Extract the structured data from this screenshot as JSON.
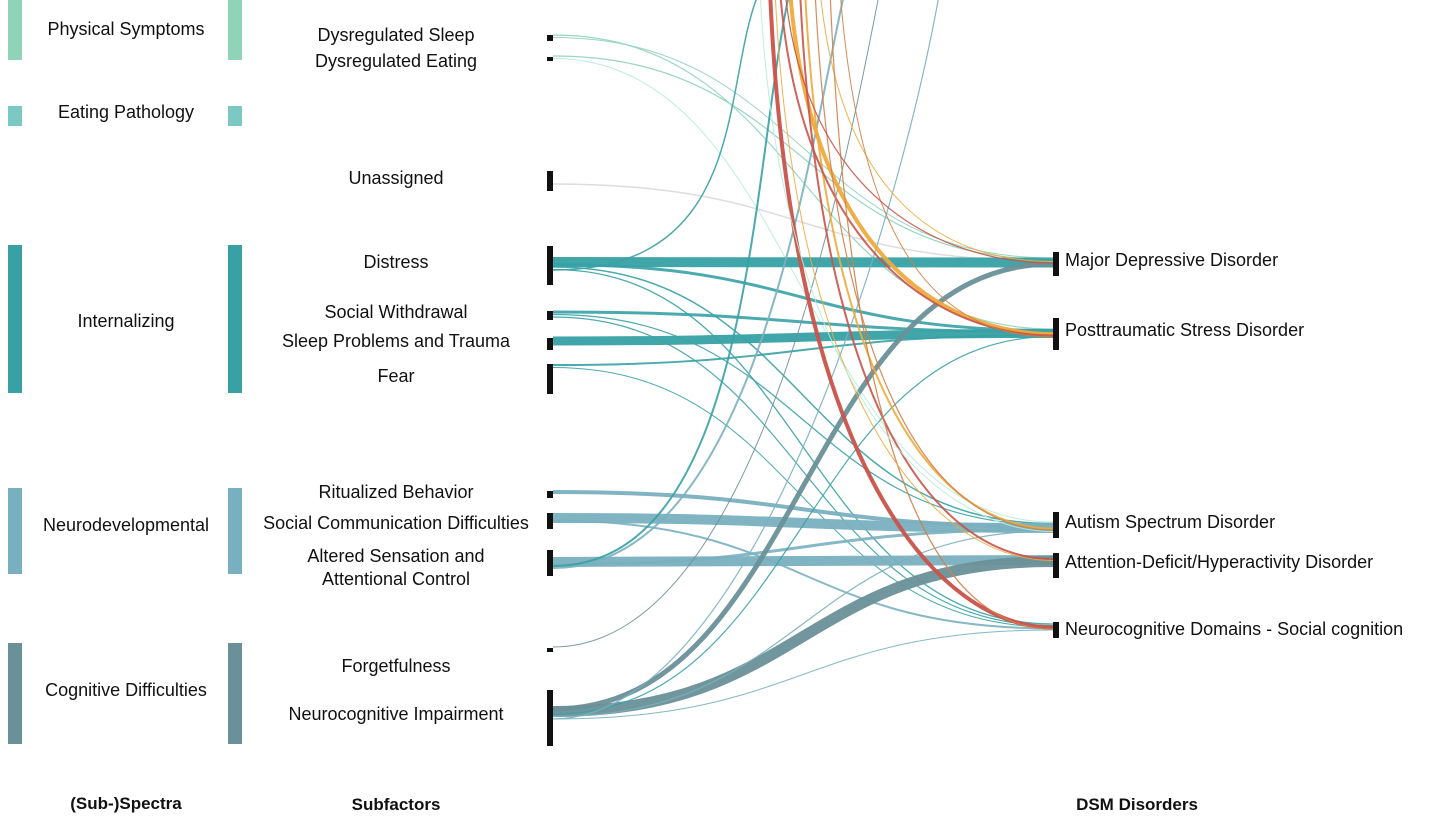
{
  "column_headers": {
    "spectra": "(Sub-)Spectra",
    "subfactors": "Subfactors",
    "dsm": "DSM Disorders"
  },
  "colors": {
    "physical": "#8fd3b9",
    "eating": "#7cc8c3",
    "internalizing": "#37a1a5",
    "neurodevelopmental": "#79b0bf",
    "cognitive": "#6a9098",
    "unassigned": "#d9d9d9",
    "orange": "#eeaa3c",
    "red": "#c9534a",
    "brown": "#d27f48",
    "mint": "#b5ecd7",
    "node": "#111111"
  },
  "spectra": [
    {
      "key": "physical",
      "label": "Physical Symptoms"
    },
    {
      "key": "eating",
      "label": "Eating Pathology"
    },
    {
      "key": "internalizing",
      "label": "Internalizing"
    },
    {
      "key": "neurodevelopmental",
      "label": "Neurodevelopmental"
    },
    {
      "key": "cognitive",
      "label": "Cognitive Difficulties"
    }
  ],
  "subfactors": [
    {
      "key": "sleep",
      "label": "Dysregulated Sleep"
    },
    {
      "key": "eating",
      "label": "Dysregulated Eating"
    },
    {
      "key": "unassigned",
      "label": "Unassigned"
    },
    {
      "key": "distress",
      "label": "Distress"
    },
    {
      "key": "withdrawal",
      "label": "Social Withdrawal"
    },
    {
      "key": "sleepTrauma",
      "label": "Sleep Problems and Trauma"
    },
    {
      "key": "fear",
      "label": "Fear"
    },
    {
      "key": "ritual",
      "label": "Ritualized Behavior"
    },
    {
      "key": "socialComm",
      "label": "Social Communication Difficulties"
    },
    {
      "key": "altered",
      "label": "Altered Sensation and",
      "label2": "Attentional Control"
    },
    {
      "key": "forget",
      "label": "Forgetfulness"
    },
    {
      "key": "neurocog",
      "label": "Neurocognitive Impairment"
    }
  ],
  "disorders": [
    {
      "key": "mdd",
      "label": "Major Depressive Disorder"
    },
    {
      "key": "ptsd",
      "label": "Posttraumatic Stress Disorder"
    },
    {
      "key": "asd",
      "label": "Autism Spectrum Disorder"
    },
    {
      "key": "adhd",
      "label": "Attention-Deficit/Hyperactivity Disorder"
    },
    {
      "key": "ncd",
      "label": "Neurocognitive Domains - Social cognition"
    }
  ],
  "flows": [
    {
      "from": "sleep",
      "to": "ptsd",
      "w": 1.2,
      "color": "physical"
    },
    {
      "from": "sleep",
      "to": "mdd",
      "w": 1,
      "color": "physical"
    },
    {
      "from": "eating",
      "to": "mdd",
      "w": 1.2,
      "color": "physical"
    },
    {
      "from": "eating",
      "to": "asd",
      "w": 1,
      "color": "mint"
    },
    {
      "from": "unassigned",
      "to": "mdd",
      "w": 1.5,
      "color": "unassigned"
    },
    {
      "from": "distress",
      "to": "mdd",
      "w": 10,
      "color": "internalizing"
    },
    {
      "from": "distress",
      "to": "ptsd",
      "w": 3,
      "color": "internalizing"
    },
    {
      "from": "distress",
      "to": "asd",
      "w": 1.5,
      "color": "internalizing"
    },
    {
      "from": "distress",
      "to": "ncd",
      "w": 1.3,
      "color": "internalizing"
    },
    {
      "from": "distress",
      "to": "top1",
      "w": 1.5,
      "color": "internalizing"
    },
    {
      "from": "withdrawal",
      "to": "ptsd",
      "w": 3,
      "color": "internalizing"
    },
    {
      "from": "withdrawal",
      "to": "asd",
      "w": 1.2,
      "color": "internalizing"
    },
    {
      "from": "withdrawal",
      "to": "ncd",
      "w": 1.2,
      "color": "internalizing"
    },
    {
      "from": "sleepTrauma",
      "to": "ptsd",
      "w": 9,
      "color": "internalizing"
    },
    {
      "from": "fear",
      "to": "ptsd",
      "w": 2,
      "color": "internalizing"
    },
    {
      "from": "fear",
      "to": "ncd",
      "w": 1,
      "color": "internalizing"
    },
    {
      "from": "ritual",
      "to": "asd",
      "w": 4,
      "color": "neurodevelopmental"
    },
    {
      "from": "socialComm",
      "to": "asd",
      "w": 10,
      "color": "neurodevelopmental"
    },
    {
      "from": "socialComm",
      "to": "ncd",
      "w": 2,
      "color": "neurodevelopmental"
    },
    {
      "from": "altered",
      "to": "adhd",
      "w": 10,
      "color": "neurodevelopmental"
    },
    {
      "from": "altered",
      "to": "asd",
      "w": 3,
      "color": "neurodevelopmental"
    },
    {
      "from": "altered",
      "to": "top2",
      "w": 2,
      "color": "internalizing"
    },
    {
      "from": "altered",
      "to": "top3",
      "w": 2,
      "color": "neurodevelopmental"
    },
    {
      "from": "forget",
      "to": "top4",
      "w": 1,
      "color": "cognitive"
    },
    {
      "from": "neurocog",
      "to": "mdd",
      "w": 5,
      "color": "cognitive"
    },
    {
      "from": "neurocog",
      "to": "adhd",
      "w": 11,
      "color": "cognitive"
    },
    {
      "from": "neurocog",
      "to": "ptsd",
      "w": 1.2,
      "color": "internalizing"
    },
    {
      "from": "neurocog",
      "to": "asd",
      "w": 1.2,
      "color": "neurodevelopmental"
    },
    {
      "from": "neurocog",
      "to": "ncd",
      "w": 1,
      "color": "neurodevelopmental"
    },
    {
      "from": "neurocog",
      "to": "top5",
      "w": 1.2,
      "color": "neurodevelopmental"
    },
    {
      "from": "top6",
      "to": "ptsd",
      "w": 4,
      "color": "orange"
    },
    {
      "from": "top7",
      "to": "mdd",
      "w": 1,
      "color": "orange"
    },
    {
      "from": "top8",
      "to": "asd",
      "w": 2,
      "color": "orange"
    },
    {
      "from": "top9",
      "to": "ncd",
      "w": 4,
      "color": "red"
    },
    {
      "from": "top10",
      "to": "ptsd",
      "w": 2,
      "color": "red"
    },
    {
      "from": "top11",
      "to": "adhd",
      "w": 2,
      "color": "red"
    },
    {
      "from": "top12",
      "to": "asd",
      "w": 1.2,
      "color": "brown"
    },
    {
      "from": "top13",
      "to": "ncd",
      "w": 1.2,
      "color": "brown"
    },
    {
      "from": "top14",
      "to": "ptsd",
      "w": 1,
      "color": "brown"
    },
    {
      "from": "top15",
      "to": "mdd",
      "w": 1.2,
      "color": "red"
    },
    {
      "from": "top16",
      "to": "adhd",
      "w": 1,
      "color": "orange"
    },
    {
      "from": "top17",
      "to": "asd",
      "w": 1,
      "color": "mint"
    }
  ]
}
